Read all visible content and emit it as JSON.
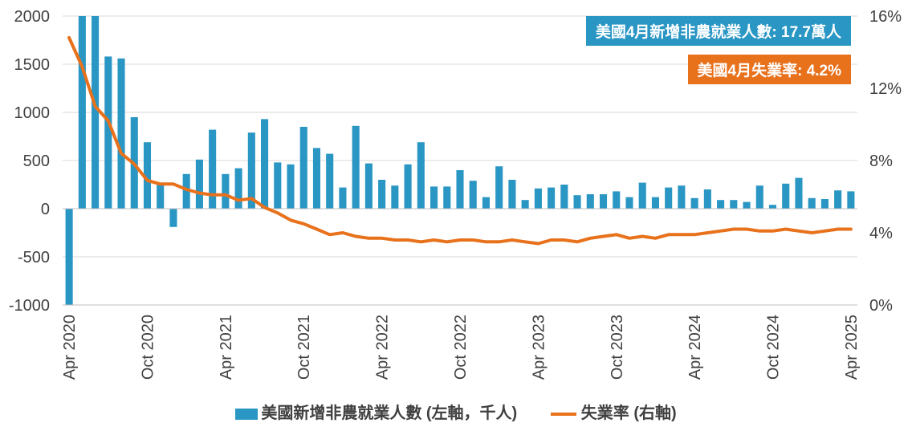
{
  "colors": {
    "bar": "#2a96c4",
    "line": "#e8711c",
    "grid": "#d9d9d9",
    "axis": "#bfbfbf",
    "text": "#404040"
  },
  "annotations": {
    "payrolls": "美國4月新增非農就業人數: 17.7萬人",
    "unemployment": "美國4月失業率: 4.2%"
  },
  "legend": {
    "bar_label": "美國新增非農就業人數 (左軸，千人)",
    "line_label": "失業率 (右軸)",
    "position": "bottom"
  },
  "chart_data": {
    "type": "bar",
    "title": "",
    "grid": true,
    "left_axis": {
      "ylim": [
        -1000,
        2000
      ],
      "ticks": [
        "2000",
        "1500",
        "1000",
        "500",
        "0",
        "-500",
        "-1000"
      ]
    },
    "right_axis": {
      "ylim": [
        0,
        16
      ],
      "ticks": [
        "16%",
        "12%",
        "8%",
        "4%",
        "0%"
      ]
    },
    "x_tick_labels": [
      "Apr 2020",
      "Oct 2020",
      "Apr 2021",
      "Oct 2021",
      "Apr 2022",
      "Oct 2022",
      "Apr 2023",
      "Oct 2023",
      "Apr 2024",
      "Oct 2024",
      "Apr 2025"
    ],
    "categories": [
      "2020-04",
      "2020-05",
      "2020-06",
      "2020-07",
      "2020-08",
      "2020-09",
      "2020-10",
      "2020-11",
      "2020-12",
      "2021-01",
      "2021-02",
      "2021-03",
      "2021-04",
      "2021-05",
      "2021-06",
      "2021-07",
      "2021-08",
      "2021-09",
      "2021-10",
      "2021-11",
      "2021-12",
      "2022-01",
      "2022-02",
      "2022-03",
      "2022-04",
      "2022-05",
      "2022-06",
      "2022-07",
      "2022-08",
      "2022-09",
      "2022-10",
      "2022-11",
      "2022-12",
      "2023-01",
      "2023-02",
      "2023-03",
      "2023-04",
      "2023-05",
      "2023-06",
      "2023-07",
      "2023-08",
      "2023-09",
      "2023-10",
      "2023-11",
      "2023-12",
      "2024-01",
      "2024-02",
      "2024-03",
      "2024-04",
      "2024-05",
      "2024-06",
      "2024-07",
      "2024-08",
      "2024-09",
      "2024-10",
      "2024-11",
      "2024-12",
      "2025-01",
      "2025-02",
      "2025-03",
      "2025-04"
    ],
    "series": [
      {
        "name": "美國新增非農就業人數 (左軸，千人)",
        "type": "bar",
        "axis": "left",
        "values": [
          -1000,
          2000,
          2000,
          1580,
          1560,
          950,
          690,
          260,
          -190,
          360,
          510,
          820,
          360,
          420,
          790,
          930,
          480,
          460,
          850,
          630,
          570,
          220,
          860,
          470,
          300,
          240,
          460,
          690,
          230,
          230,
          400,
          290,
          120,
          440,
          300,
          90,
          210,
          220,
          250,
          140,
          150,
          150,
          180,
          120,
          270,
          120,
          220,
          240,
          110,
          200,
          90,
          90,
          70,
          240,
          40,
          260,
          320,
          110,
          100,
          190,
          180
        ]
      },
      {
        "name": "失業率 (右軸)",
        "type": "line",
        "axis": "right",
        "values": [
          14.8,
          13.2,
          11.0,
          10.2,
          8.4,
          7.8,
          6.9,
          6.7,
          6.7,
          6.4,
          6.2,
          6.1,
          6.1,
          5.8,
          5.9,
          5.4,
          5.1,
          4.7,
          4.5,
          4.2,
          3.9,
          4.0,
          3.8,
          3.7,
          3.7,
          3.6,
          3.6,
          3.5,
          3.6,
          3.5,
          3.6,
          3.6,
          3.5,
          3.5,
          3.6,
          3.5,
          3.4,
          3.6,
          3.6,
          3.5,
          3.7,
          3.8,
          3.9,
          3.7,
          3.8,
          3.7,
          3.9,
          3.9,
          3.9,
          4.0,
          4.1,
          4.2,
          4.2,
          4.1,
          4.1,
          4.2,
          4.1,
          4.0,
          4.1,
          4.2,
          4.2
        ]
      }
    ]
  }
}
